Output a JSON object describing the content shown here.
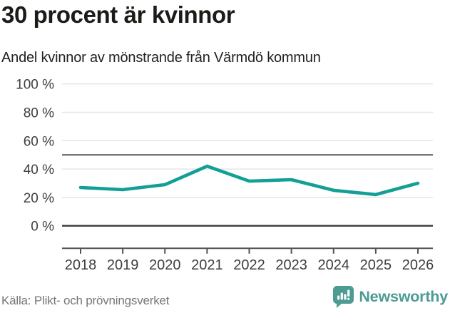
{
  "header": {
    "title": "30 procent är kvinnor",
    "subtitle": "Andel kvinnor av mönstrande från Värmdö kommun"
  },
  "footer": {
    "source": "Källa: Plikt- och prövningsverket",
    "brand": "Newsworthy"
  },
  "colors": {
    "background": "#ffffff",
    "title": "#1b1b17",
    "subtitle": "#212121",
    "line": "#12a096",
    "grid": "#e4e4e4",
    "reference_line": "#75757b",
    "zero_line": "#3a3a3c",
    "axis": "#525256",
    "tick_label": "#3e3e40",
    "source": "#76767a",
    "brand": "#4c9c94"
  },
  "chart_data": {
    "type": "line",
    "title": "30 procent är kvinnor",
    "subtitle": "Andel kvinnor av mönstrande från Värmdö kommun",
    "x": [
      "2018",
      "2019",
      "2020",
      "2021",
      "2022",
      "2023",
      "2024",
      "2025",
      "2026"
    ],
    "series": [
      {
        "name": "Andel kvinnor av mönstrande",
        "values": [
          27,
          25.5,
          29,
          42,
          31.5,
          32.5,
          25,
          22,
          30
        ]
      }
    ],
    "unit": "%",
    "ylim": [
      0,
      100
    ],
    "y_ticks": [
      0,
      20,
      40,
      60,
      80,
      100
    ],
    "y_tick_labels": [
      "0 %",
      "20 %",
      "40 %",
      "60 %",
      "80 %",
      "100 %"
    ],
    "reference_line_y": 50,
    "grid": "horizontal",
    "legend": "none",
    "source": "Källa: Plikt- och prövningsverket"
  }
}
